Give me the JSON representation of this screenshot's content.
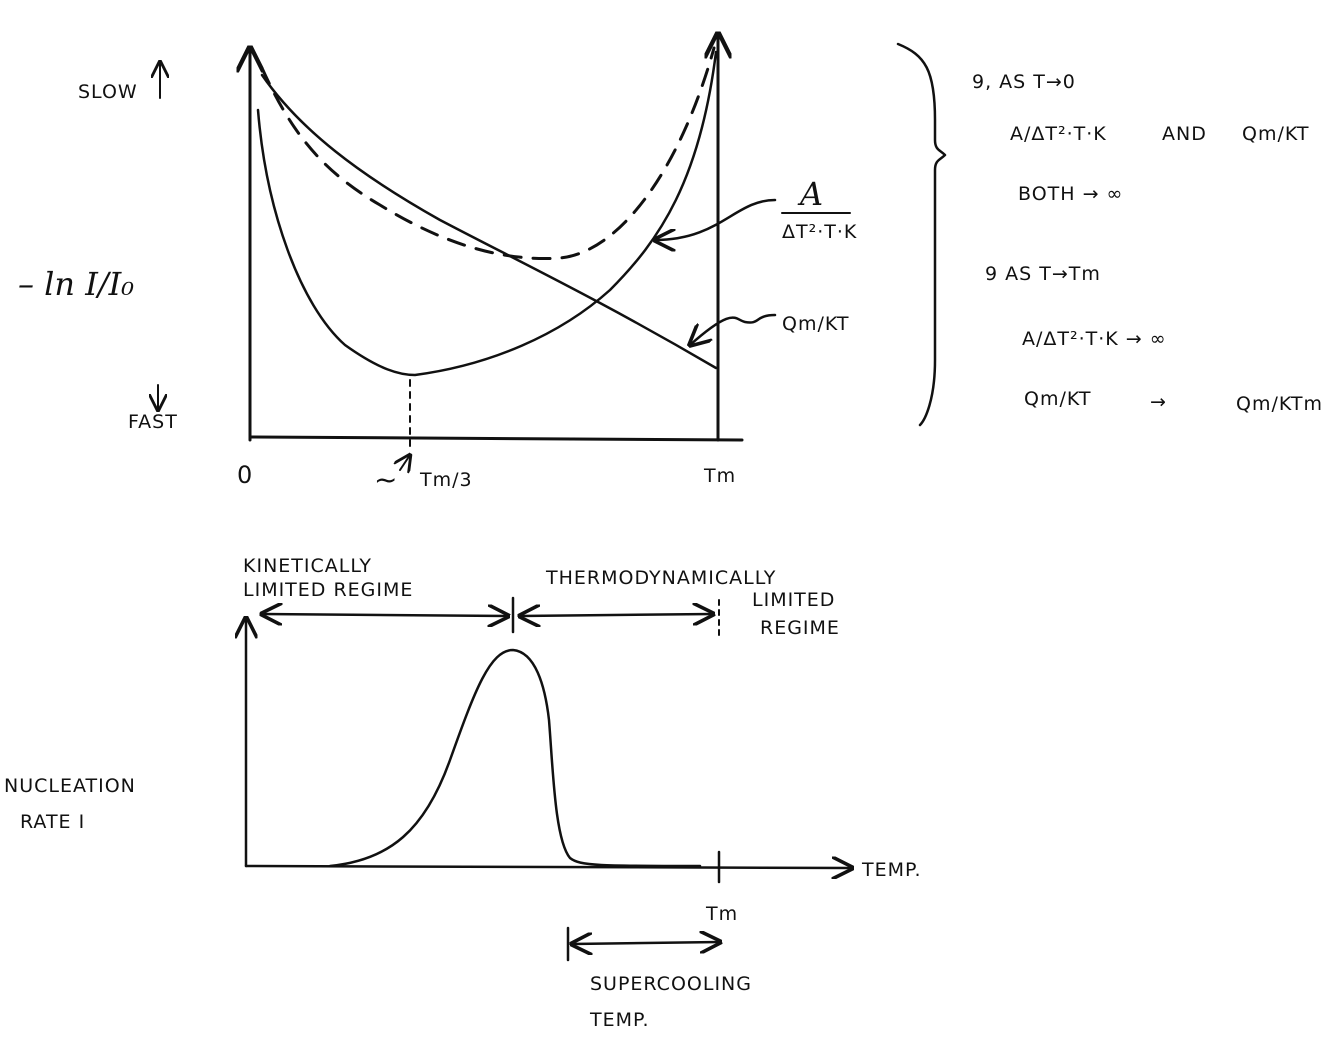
{
  "top_graph": {
    "y_axis": {
      "label": "– ln I/I₀",
      "top": "SLOW",
      "bottom": "FAST"
    },
    "x_ticks": {
      "zero": "0",
      "approx": "~",
      "tm_third": "Tm/3",
      "tm": "Tm"
    },
    "curve_labels": {
      "diffusion_num": "A",
      "diffusion_den": "ΔT²·T·K",
      "activation": "Qm/KT"
    }
  },
  "notes": {
    "n1_head": "9, AS T→0",
    "n1_line1_a": "A/ΔT²·T·K",
    "n1_line1_and": "AND",
    "n1_line1_b": "Qm/KT",
    "n1_line2": "BOTH → ∞",
    "n2_head": "9 AS T→Tm",
    "n2_line1": "A/ΔT²·T·K → ∞",
    "n2_line2_a": "Qm/KT",
    "n2_arrow": "→",
    "n2_line2_b": "Qm/KTm"
  },
  "bottom_graph": {
    "regime_left_1": "KINETICALLY",
    "regime_left_2": "LIMITED REGIME",
    "regime_right_1": "THERMODYNAMICALLY",
    "regime_right_2": "LIMITED",
    "regime_right_3": "REGIME",
    "y_label_1": "NUCLEATION",
    "y_label_2": "RATE I",
    "x_label": "TEMP.",
    "tm": "Tm",
    "supercooling_1": "SUPERCOOLING",
    "supercooling_2": "TEMP."
  }
}
